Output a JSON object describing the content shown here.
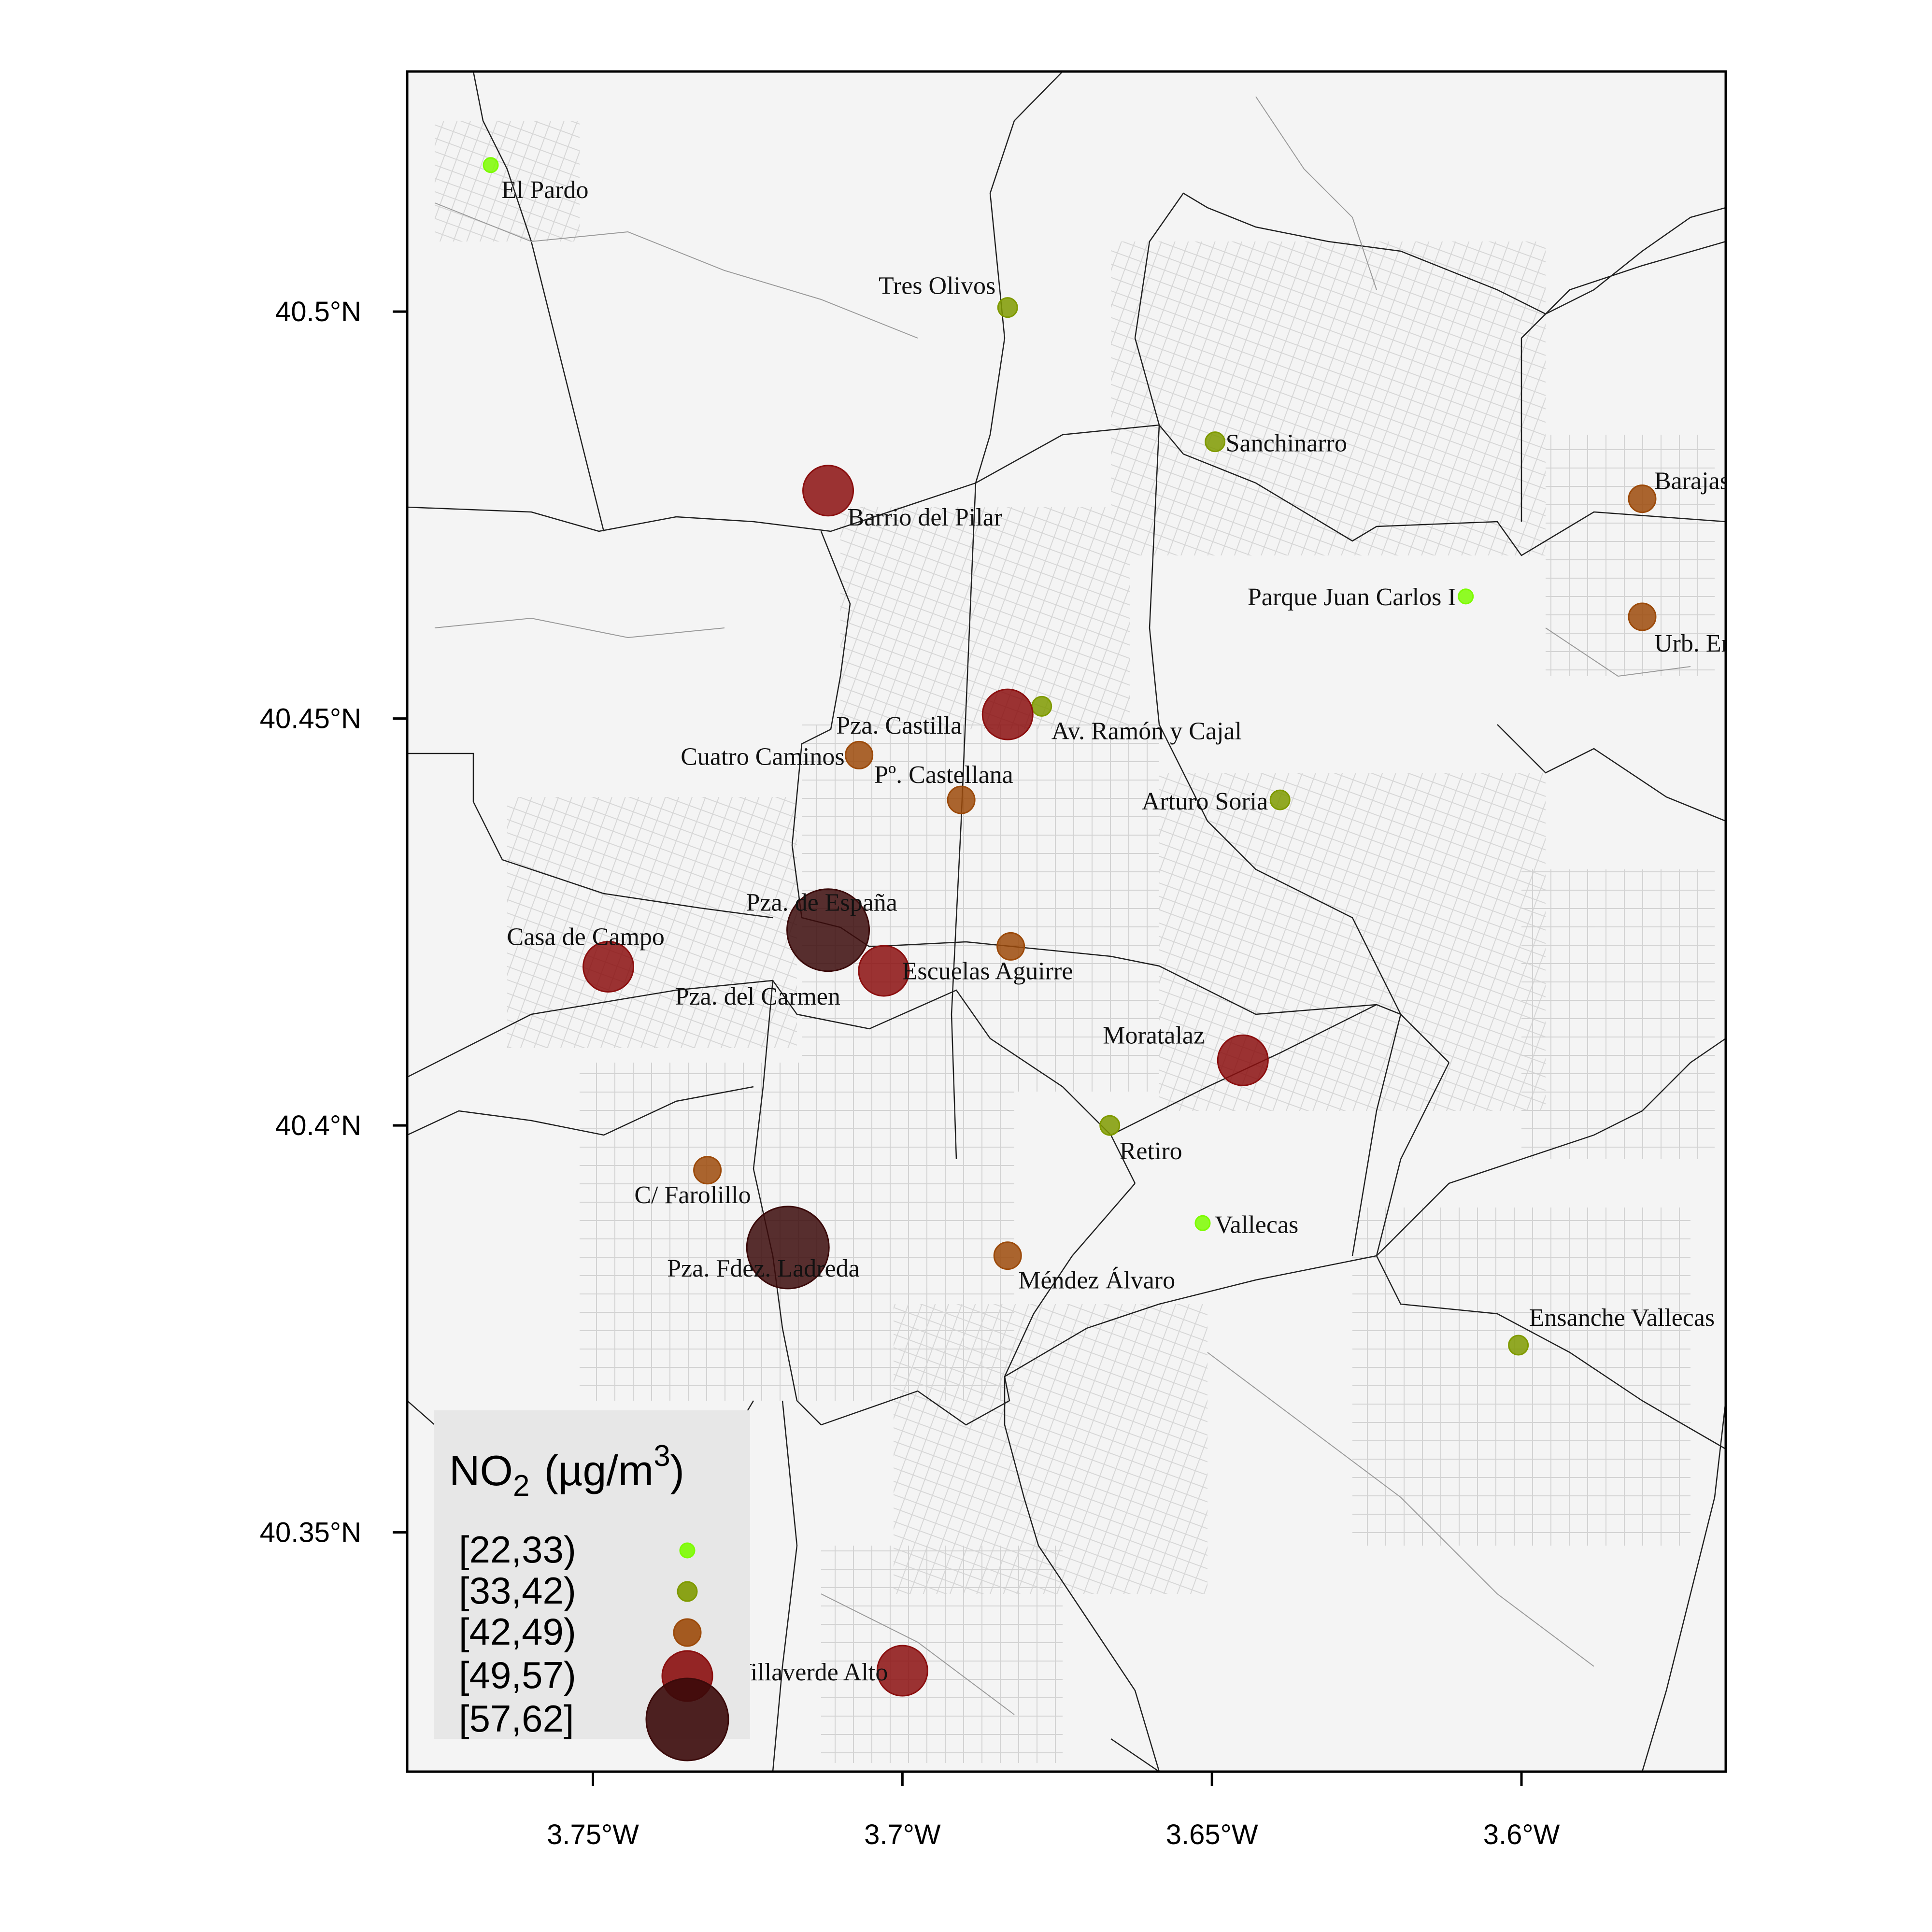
{
  "map": {
    "lon_range": [
      -3.78,
      -3.567
    ],
    "lat_range": [
      40.3206,
      40.5295
    ],
    "x_ticks": [
      {
        "value": -3.75,
        "label": "3.75°W"
      },
      {
        "value": -3.7,
        "label": "3.7°W"
      },
      {
        "value": -3.65,
        "label": "3.65°W"
      },
      {
        "value": -3.6,
        "label": "3.6°W"
      }
    ],
    "y_ticks": [
      {
        "value": 40.5,
        "label": "40.5°N"
      },
      {
        "value": 40.45,
        "label": "40.45°N"
      },
      {
        "value": 40.4,
        "label": "40.4°N"
      },
      {
        "value": 40.35,
        "label": "40.35°N"
      }
    ]
  },
  "legend": {
    "title_main": "NO",
    "title_sub": "2",
    "title_unit": "(µg/m",
    "title_sup": "3",
    "title_end": ")",
    "classes": [
      {
        "label": "[22,33)",
        "color": "#7CFC00"
      },
      {
        "label": "[33,42)",
        "color": "#7F9A00"
      },
      {
        "label": "[42,49)",
        "color": "#9C4A0A"
      },
      {
        "label": "[49,57)",
        "color": "#8B0F0F"
      },
      {
        "label": "[57,62]",
        "color": "#3B0A0A"
      }
    ]
  },
  "chart_data": {
    "type": "scatter",
    "x_axis": "longitude",
    "y_axis": "latitude",
    "size_and_color_variable": "NO2 (µg/m3)",
    "stations": [
      {
        "name": "El Pardo",
        "lon": -3.7665,
        "lat": 40.518,
        "class": 0
      },
      {
        "name": "Tres Olivos",
        "lon": -3.683,
        "lat": 40.5005,
        "class": 1
      },
      {
        "name": "Sanchinarro",
        "lon": -3.6495,
        "lat": 40.484,
        "class": 1
      },
      {
        "name": "Barrio del Pilar",
        "lon": -3.712,
        "lat": 40.478,
        "class": 3
      },
      {
        "name": "Barajas",
        "lon": -3.5805,
        "lat": 40.477,
        "class": 2
      },
      {
        "name": "Parque Juan Carlos I",
        "lon": -3.609,
        "lat": 40.465,
        "class": 0
      },
      {
        "name": "Urb. Embajada",
        "lon": -3.5805,
        "lat": 40.4625,
        "class": 2
      },
      {
        "name": "Av. Ramón y Cajal",
        "lon": -3.6775,
        "lat": 40.4515,
        "class": 1
      },
      {
        "name": "Pza. Castilla",
        "lon": -3.683,
        "lat": 40.4505,
        "class": 3
      },
      {
        "name": "Pº. Castellana",
        "lon": -3.6905,
        "lat": 40.44,
        "class": 2
      },
      {
        "name": "Arturo Soria",
        "lon": -3.639,
        "lat": 40.44,
        "class": 1
      },
      {
        "name": "Cuatro Caminos",
        "lon": -3.707,
        "lat": 40.4455,
        "class": 2
      },
      {
        "name": "Pza. de España",
        "lon": -3.712,
        "lat": 40.424,
        "class": 4
      },
      {
        "name": "Escuelas Aguirre",
        "lon": -3.6825,
        "lat": 40.422,
        "class": 2
      },
      {
        "name": "Pza. del Carmen",
        "lon": -3.703,
        "lat": 40.419,
        "class": 3
      },
      {
        "name": "Casa de Campo",
        "lon": -3.7475,
        "lat": 40.4195,
        "class": 3
      },
      {
        "name": "Moratalaz",
        "lon": -3.645,
        "lat": 40.408,
        "class": 3
      },
      {
        "name": "Retiro",
        "lon": -3.6665,
        "lat": 40.4,
        "class": 1
      },
      {
        "name": "C/ Farolillo",
        "lon": -3.7315,
        "lat": 40.3945,
        "class": 2
      },
      {
        "name": "Vallecas",
        "lon": -3.6515,
        "lat": 40.388,
        "class": 0
      },
      {
        "name": "Pza. Fdez. Ladreda",
        "lon": -3.7185,
        "lat": 40.385,
        "class": 4
      },
      {
        "name": "Méndez Álvaro",
        "lon": -3.683,
        "lat": 40.384,
        "class": 2
      },
      {
        "name": "Ensanche Vallecas",
        "lon": -3.6005,
        "lat": 40.373,
        "class": 1
      },
      {
        "name": "Villaverde Alto",
        "lon": -3.7,
        "lat": 40.333,
        "class": 3
      }
    ]
  }
}
